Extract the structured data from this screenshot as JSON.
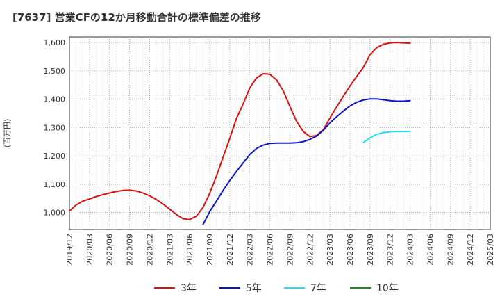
{
  "chart_data": {
    "type": "line",
    "title": "[7637]  営業CFの12か月移動合計の標準偏差の推移",
    "ylabel": "(百万円)",
    "xlabel": "",
    "ylim": [
      940,
      1620
    ],
    "yticks": [
      1000,
      1100,
      1200,
      1300,
      1400,
      1500,
      1600
    ],
    "ytick_labels": [
      "1,000",
      "1,100",
      "1,200",
      "1,300",
      "1,400",
      "1,500",
      "1,600"
    ],
    "xticks": [
      "2019-12",
      "2020-03",
      "2020-06",
      "2020-09",
      "2020-12",
      "2021-03",
      "2021-06",
      "2021-09",
      "2021-12",
      "2022-03",
      "2022-06",
      "2022-09",
      "2022-12",
      "2023-03",
      "2023-06",
      "2023-09",
      "2023-12",
      "2024-03",
      "2024-06",
      "2024-09",
      "2024-12",
      "2025-03"
    ],
    "xtick_labels": [
      "2019/12",
      "2020/03",
      "2020/06",
      "2020/09",
      "2020/12",
      "2021/03",
      "2021/06",
      "2021/09",
      "2021/12",
      "2022/03",
      "2022/06",
      "2022/09",
      "2022/12",
      "2023/03",
      "2023/06",
      "2023/09",
      "2023/12",
      "2024/03",
      "2024/06",
      "2024/09",
      "2024/12",
      "2025/03"
    ],
    "grid": true,
    "legend_position": "bottom",
    "series": [
      {
        "name": "3年",
        "color": "#dd1111",
        "x": [
          "2019-12",
          "2020-01",
          "2020-02",
          "2020-03",
          "2020-04",
          "2020-05",
          "2020-06",
          "2020-07",
          "2020-08",
          "2020-09",
          "2020-10",
          "2020-11",
          "2020-12",
          "2021-01",
          "2021-02",
          "2021-03",
          "2021-04",
          "2021-05",
          "2021-06",
          "2021-07",
          "2021-08",
          "2021-09",
          "2021-10",
          "2021-11",
          "2021-12",
          "2022-01",
          "2022-02",
          "2022-03",
          "2022-04",
          "2022-05",
          "2022-06",
          "2022-07",
          "2022-08",
          "2022-09",
          "2022-10",
          "2022-11",
          "2022-12",
          "2023-01",
          "2023-02",
          "2023-03",
          "2023-04",
          "2023-05",
          "2023-06",
          "2023-07",
          "2023-08",
          "2023-09",
          "2023-10",
          "2023-11",
          "2023-12",
          "2024-01",
          "2024-02",
          "2024-03"
        ],
        "values": [
          1005,
          1027,
          1040,
          1048,
          1056,
          1063,
          1069,
          1074,
          1078,
          1079,
          1076,
          1069,
          1059,
          1046,
          1030,
          1012,
          993,
          978,
          975,
          987,
          1018,
          1068,
          1128,
          1195,
          1262,
          1332,
          1383,
          1440,
          1475,
          1490,
          1488,
          1468,
          1430,
          1375,
          1322,
          1286,
          1268,
          1272,
          1292,
          1333,
          1373,
          1410,
          1447,
          1480,
          1512,
          1558,
          1582,
          1594,
          1599,
          1600,
          1599,
          1598
        ]
      },
      {
        "name": "5年",
        "color": "#0a14c8",
        "x": [
          "2021-08",
          "2021-09",
          "2021-10",
          "2021-11",
          "2021-12",
          "2022-01",
          "2022-02",
          "2022-03",
          "2022-04",
          "2022-05",
          "2022-06",
          "2022-07",
          "2022-08",
          "2022-09",
          "2022-10",
          "2022-11",
          "2022-12",
          "2023-01",
          "2023-02",
          "2023-03",
          "2023-04",
          "2023-05",
          "2023-06",
          "2023-07",
          "2023-08",
          "2023-09",
          "2023-10",
          "2023-11",
          "2023-12",
          "2024-01",
          "2024-02",
          "2024-03"
        ],
        "values": [
          958,
          1003,
          1040,
          1078,
          1113,
          1145,
          1175,
          1205,
          1226,
          1238,
          1244,
          1245,
          1245,
          1245,
          1246,
          1250,
          1258,
          1270,
          1290,
          1316,
          1338,
          1358,
          1376,
          1389,
          1397,
          1401,
          1401,
          1398,
          1395,
          1393,
          1393,
          1395
        ]
      },
      {
        "name": "7年",
        "color": "#22ddee",
        "x": [
          "2023-08",
          "2023-09",
          "2023-10",
          "2023-11",
          "2023-12",
          "2024-01",
          "2024-02",
          "2024-03"
        ],
        "values": [
          1247,
          1264,
          1276,
          1282,
          1285,
          1286,
          1286,
          1286
        ]
      },
      {
        "name": "10年",
        "color": "#228822",
        "x": [],
        "values": []
      }
    ]
  }
}
